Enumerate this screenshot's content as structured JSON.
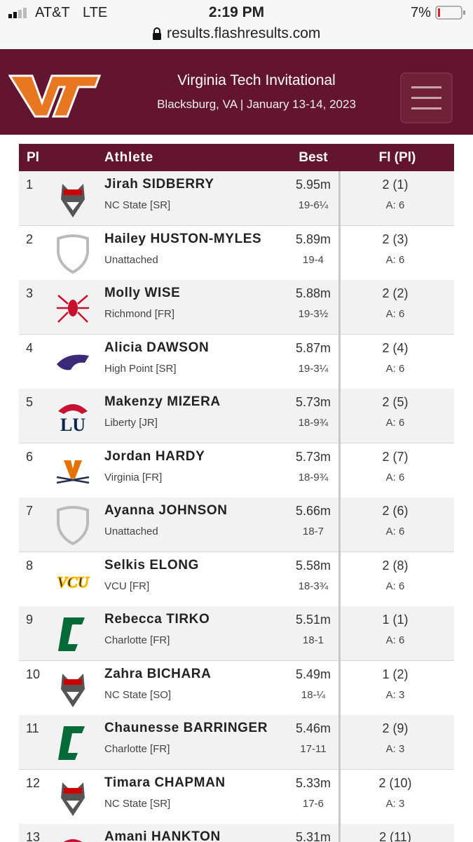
{
  "status_bar": {
    "carrier": "AT&T",
    "network": "LTE",
    "time": "2:19 PM",
    "battery": "7%"
  },
  "url": "results.flashresults.com",
  "header": {
    "title": "Virginia Tech Invitational",
    "subtitle": "Blacksburg, VA | January 13-14, 2023"
  },
  "table": {
    "columns": [
      "Pl",
      "Athlete",
      "Best",
      "Fl (Pl)"
    ],
    "rows": [
      {
        "place": "1",
        "athlete": "Jirah SIDBERRY",
        "team": "NC State [SR]",
        "mark": "5.95m",
        "imperial": "19-6¼",
        "flight": "2 (1)",
        "attempts": "A: 6"
      },
      {
        "place": "2",
        "athlete": "Hailey HUSTON-MYLES",
        "team": "Unattached",
        "mark": "5.89m",
        "imperial": "19-4",
        "flight": "2 (3)",
        "attempts": "A: 6"
      },
      {
        "place": "3",
        "athlete": "Molly WISE",
        "team": "Richmond [FR]",
        "mark": "5.88m",
        "imperial": "19-3½",
        "flight": "2 (2)",
        "attempts": "A: 6"
      },
      {
        "place": "4",
        "athlete": "Alicia DAWSON",
        "team": "High Point [SR]",
        "mark": "5.87m",
        "imperial": "19-3¼",
        "flight": "2 (4)",
        "attempts": "A: 6"
      },
      {
        "place": "5",
        "athlete": "Makenzy MIZERA",
        "team": "Liberty [JR]",
        "mark": "5.73m",
        "imperial": "18-9¾",
        "flight": "2 (5)",
        "attempts": "A: 6"
      },
      {
        "place": "6",
        "athlete": "Jordan HARDY",
        "team": "Virginia [FR]",
        "mark": "5.73m",
        "imperial": "18-9¾",
        "flight": "2 (7)",
        "attempts": "A: 6"
      },
      {
        "place": "7",
        "athlete": "Ayanna JOHNSON",
        "team": "Unattached",
        "mark": "5.66m",
        "imperial": "18-7",
        "flight": "2 (6)",
        "attempts": "A: 6"
      },
      {
        "place": "8",
        "athlete": "Selkis ELONG",
        "team": "VCU [FR]",
        "mark": "5.58m",
        "imperial": "18-3¾",
        "flight": "2 (8)",
        "attempts": "A: 6"
      },
      {
        "place": "9",
        "athlete": "Rebecca TIRKO",
        "team": "Charlotte [FR]",
        "mark": "5.51m",
        "imperial": "18-1",
        "flight": "1 (1)",
        "attempts": "A: 6"
      },
      {
        "place": "10",
        "athlete": "Zahra BICHARA",
        "team": "NC State [SO]",
        "mark": "5.49m",
        "imperial": "18-¼",
        "flight": "1 (2)",
        "attempts": "A: 3"
      },
      {
        "place": "11",
        "athlete": "Chaunesse BARRINGER",
        "team": "Charlotte [FR]",
        "mark": "5.46m",
        "imperial": "17-11",
        "flight": "2 (9)",
        "attempts": "A: 3"
      },
      {
        "place": "12",
        "athlete": "Timara CHAPMAN",
        "team": "NC State [SR]",
        "mark": "5.33m",
        "imperial": "17-6",
        "flight": "2 (10)",
        "attempts": "A: 3"
      },
      {
        "place": "13",
        "athlete": "Amani HANKTON",
        "mark": "5.31m",
        "flight": "2 (11)"
      }
    ]
  }
}
